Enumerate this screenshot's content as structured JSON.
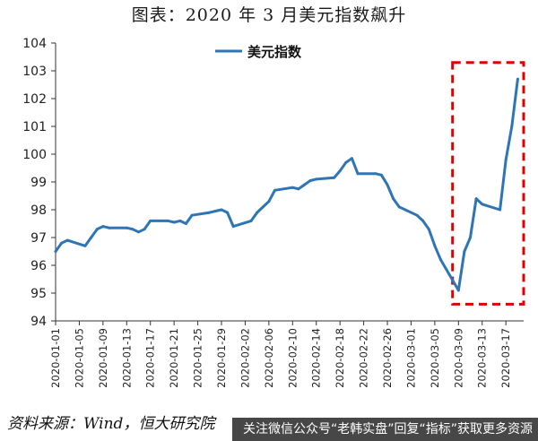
{
  "title": "图表：2020 年 3 月美元指数飙升",
  "source": "资料来源：Wind，恒大研究院",
  "watermark": "关注微信公众号“老韩实盘”回复“指标”获取更多资源",
  "chart_data": {
    "type": "line",
    "series": [
      {
        "name": "美元指数",
        "color": "#2e75b6",
        "points": [
          [
            "2020-01-01",
            96.5
          ],
          [
            "2020-01-02",
            96.8
          ],
          [
            "2020-01-03",
            96.9
          ],
          [
            "2020-01-06",
            96.7
          ],
          [
            "2020-01-07",
            97.0
          ],
          [
            "2020-01-08",
            97.3
          ],
          [
            "2020-01-09",
            97.4
          ],
          [
            "2020-01-10",
            97.35
          ],
          [
            "2020-01-13",
            97.35
          ],
          [
            "2020-01-14",
            97.3
          ],
          [
            "2020-01-15",
            97.2
          ],
          [
            "2020-01-16",
            97.3
          ],
          [
            "2020-01-17",
            97.6
          ],
          [
            "2020-01-20",
            97.6
          ],
          [
            "2020-01-21",
            97.55
          ],
          [
            "2020-01-22",
            97.6
          ],
          [
            "2020-01-23",
            97.5
          ],
          [
            "2020-01-24",
            97.8
          ],
          [
            "2020-01-27",
            97.9
          ],
          [
            "2020-01-28",
            97.95
          ],
          [
            "2020-01-29",
            98.0
          ],
          [
            "2020-01-30",
            97.9
          ],
          [
            "2020-01-31",
            97.4
          ],
          [
            "2020-02-03",
            97.6
          ],
          [
            "2020-02-04",
            97.9
          ],
          [
            "2020-02-05",
            98.1
          ],
          [
            "2020-02-06",
            98.3
          ],
          [
            "2020-02-07",
            98.7
          ],
          [
            "2020-02-10",
            98.8
          ],
          [
            "2020-02-11",
            98.75
          ],
          [
            "2020-02-12",
            98.9
          ],
          [
            "2020-02-13",
            99.05
          ],
          [
            "2020-02-14",
            99.1
          ],
          [
            "2020-02-17",
            99.15
          ],
          [
            "2020-02-18",
            99.4
          ],
          [
            "2020-02-19",
            99.7
          ],
          [
            "2020-02-20",
            99.85
          ],
          [
            "2020-02-21",
            99.3
          ],
          [
            "2020-02-24",
            99.3
          ],
          [
            "2020-02-25",
            99.25
          ],
          [
            "2020-02-26",
            98.9
          ],
          [
            "2020-02-27",
            98.4
          ],
          [
            "2020-02-28",
            98.1
          ],
          [
            "2020-03-02",
            97.8
          ],
          [
            "2020-03-03",
            97.6
          ],
          [
            "2020-03-04",
            97.3
          ],
          [
            "2020-03-05",
            96.7
          ],
          [
            "2020-03-06",
            96.2
          ],
          [
            "2020-03-09",
            95.1
          ],
          [
            "2020-03-10",
            96.5
          ],
          [
            "2020-03-11",
            97.0
          ],
          [
            "2020-03-12",
            98.4
          ],
          [
            "2020-03-13",
            98.2
          ],
          [
            "2020-03-16",
            98.0
          ],
          [
            "2020-03-17",
            99.8
          ],
          [
            "2020-03-18",
            101.0
          ],
          [
            "2020-03-19",
            102.7
          ]
        ]
      }
    ],
    "x_ticks": [
      "2020-01-01",
      "2020-01-05",
      "2020-01-09",
      "2020-01-13",
      "2020-01-17",
      "2020-01-21",
      "2020-01-25",
      "2020-01-29",
      "2020-02-02",
      "2020-02-06",
      "2020-02-10",
      "2020-02-14",
      "2020-02-18",
      "2020-02-22",
      "2020-02-26",
      "2020-03-01",
      "2020-03-05",
      "2020-03-09",
      "2020-03-13",
      "2020-03-17"
    ],
    "x_range": [
      "2020-01-01",
      "2020-03-20"
    ],
    "yticks": [
      94,
      95,
      96,
      97,
      98,
      99,
      100,
      101,
      102,
      103,
      104
    ],
    "ylim": [
      94,
      104
    ],
    "legend_position": "top-center",
    "grid": false,
    "highlight": {
      "style": "dashed-box",
      "color": "#e00000",
      "from": "2020-03-08",
      "to": "2020-03-20",
      "ymin": 94.6,
      "ymax": 103.3
    }
  }
}
